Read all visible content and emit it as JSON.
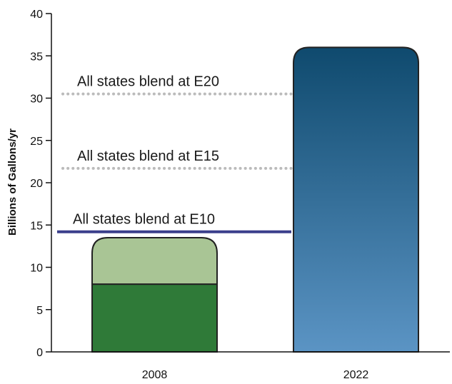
{
  "chart_data": {
    "type": "bar",
    "categories": [
      "2008",
      "2022"
    ],
    "series": [
      {
        "values": [
          8,
          0
        ],
        "color": "#2f7a38"
      },
      {
        "values": [
          5.5,
          36
        ],
        "color": "#a9c595"
      }
    ],
    "bar_2022_gradient": [
      "#0f4a6e",
      "#5b94c4"
    ],
    "ylabel": "Billions of Gallons/yr",
    "ylim": [
      0,
      40
    ],
    "yticks": [
      "0",
      "5",
      "10",
      "15",
      "20",
      "25",
      "30",
      "35",
      "40"
    ],
    "grid": false,
    "reference_lines": [
      {
        "label": "All states blend at E20",
        "value": 30.5,
        "style": "dotted",
        "color": "#bbbbbb"
      },
      {
        "label": "All states blend at E15",
        "value": 21.7,
        "style": "dotted",
        "color": "#bbbbbb"
      },
      {
        "label": "All states blend at E10",
        "value": 14.2,
        "style": "solid",
        "color": "#3b3f8c"
      }
    ]
  }
}
